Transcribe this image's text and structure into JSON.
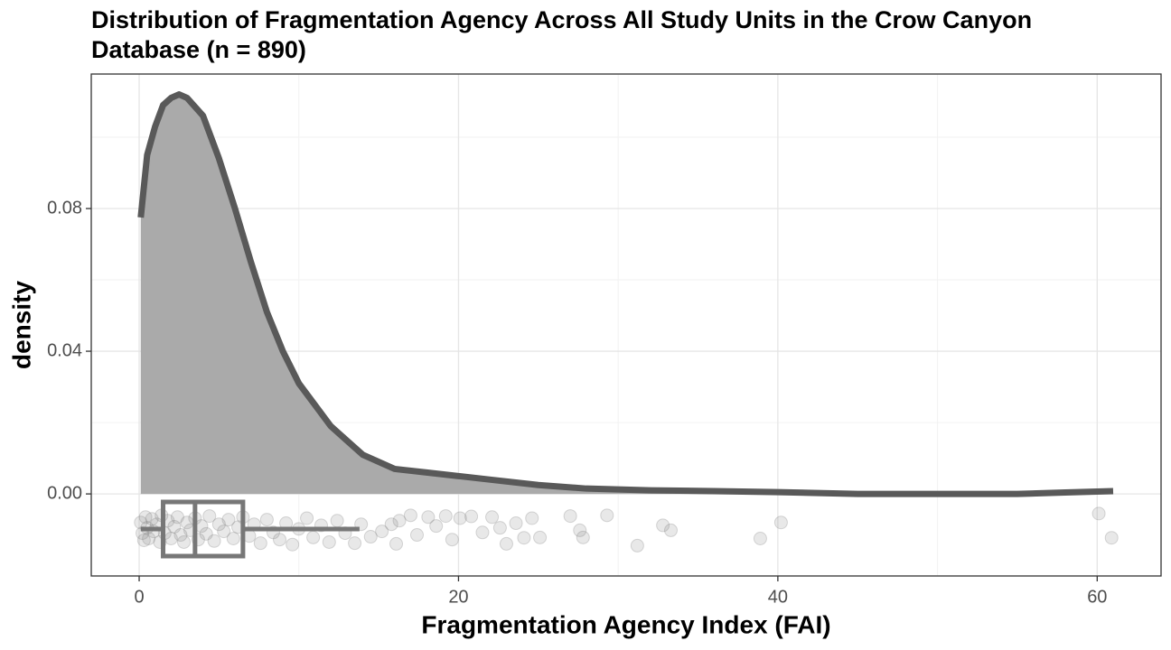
{
  "chart_data": {
    "type": "density",
    "title": "Distribution of Fragmentation Agency Across All Study Units in the Crow Canyon Database (n = 890)",
    "x_label": "Fragmentation Agency Index (FAI)",
    "y_label": "density",
    "x": [
      0.1,
      0.5,
      1,
      1.5,
      2,
      2.5,
      3,
      4,
      5,
      6,
      7,
      8,
      9,
      10,
      11,
      12,
      13,
      14,
      15,
      16,
      18,
      20,
      22,
      25,
      28,
      32,
      36,
      40,
      45,
      50,
      55,
      58,
      61
    ],
    "values": [
      0.0775,
      0.095,
      0.103,
      0.109,
      0.111,
      0.112,
      0.111,
      0.106,
      0.094,
      0.08,
      0.065,
      0.051,
      0.04,
      0.031,
      0.025,
      0.019,
      0.015,
      0.011,
      0.009,
      0.007,
      0.006,
      0.005,
      0.004,
      0.0025,
      0.0015,
      0.001,
      0.0008,
      0.0005,
      0,
      0,
      0,
      0.0004,
      0.0008
    ],
    "fill_color": "#aaaaaa",
    "line_color": "#595959",
    "points": {
      "color": "#808080",
      "x": [
        0.1,
        0.2,
        0.3,
        0.4,
        0.5,
        0.6,
        0.8,
        0.9,
        1.1,
        1.3,
        1.4,
        1.6,
        1.8,
        2.0,
        2.2,
        2.4,
        2.6,
        2.8,
        3.0,
        3.2,
        3.5,
        3.7,
        3.9,
        4.2,
        4.4,
        4.7,
        5.0,
        5.3,
        5.6,
        5.9,
        6.2,
        6.5,
        6.9,
        7.2,
        7.6,
        8.0,
        8.4,
        8.8,
        9.2,
        9.6,
        10.0,
        10.5,
        10.9,
        11.4,
        11.9,
        12.4,
        12.9,
        13.5,
        13.9,
        14.5,
        15.2,
        15.8,
        16.3,
        16.1,
        17.0,
        17.4,
        18.1,
        18.6,
        19.2,
        19.6,
        20.1,
        20.8,
        21.5,
        22.1,
        22.6,
        23.0,
        23.6,
        24.1,
        24.6,
        25.1,
        27.0,
        27.6,
        27.8,
        29.3,
        31.2,
        32.8,
        33.3,
        38.9,
        40.2,
        60.1,
        60.9
      ],
      "y": [
        -0.008,
        -0.011,
        -0.013,
        -0.0065,
        -0.0095,
        -0.0125,
        -0.007,
        -0.0105,
        -0.0085,
        -0.0135,
        -0.006,
        -0.011,
        -0.0075,
        -0.0125,
        -0.0092,
        -0.0065,
        -0.0115,
        -0.0135,
        -0.008,
        -0.0102,
        -0.0068,
        -0.0128,
        -0.009,
        -0.0112,
        -0.0062,
        -0.0132,
        -0.0085,
        -0.0105,
        -0.0072,
        -0.0125,
        -0.0093,
        -0.0065,
        -0.0118,
        -0.0085,
        -0.0138,
        -0.0072,
        -0.0108,
        -0.0128,
        -0.0082,
        -0.0142,
        -0.0098,
        -0.0068,
        -0.0122,
        -0.0088,
        -0.0135,
        -0.0075,
        -0.011,
        -0.0138,
        -0.0085,
        -0.012,
        -0.0105,
        -0.0085,
        -0.0075,
        -0.014,
        -0.006,
        -0.0115,
        -0.0065,
        -0.009,
        -0.0062,
        -0.0128,
        -0.0068,
        -0.0063,
        -0.0108,
        -0.0065,
        -0.0095,
        -0.014,
        -0.0082,
        -0.0123,
        -0.0068,
        -0.0122,
        -0.0062,
        -0.0102,
        -0.0122,
        -0.006,
        -0.0145,
        -0.0088,
        -0.0102,
        -0.0125,
        -0.008,
        -0.0055,
        -0.0123
      ]
    },
    "boxplot": {
      "color": "#777777",
      "min": 0.1,
      "q1": 1.5,
      "median": 3.5,
      "q3": 6.5,
      "max": 13.8
    },
    "xlim": [
      -3,
      64
    ],
    "ylim": [
      -0.023,
      0.1177
    ],
    "xticks": [
      0,
      20,
      40,
      60
    ],
    "yticks": [
      {
        "value": 0,
        "label": "0.00"
      },
      0.04,
      0.08
    ],
    "minor_xticks": [
      10,
      30,
      50
    ],
    "minor_yticks": [
      0.02,
      0.06,
      0.1
    ],
    "grid": true
  }
}
